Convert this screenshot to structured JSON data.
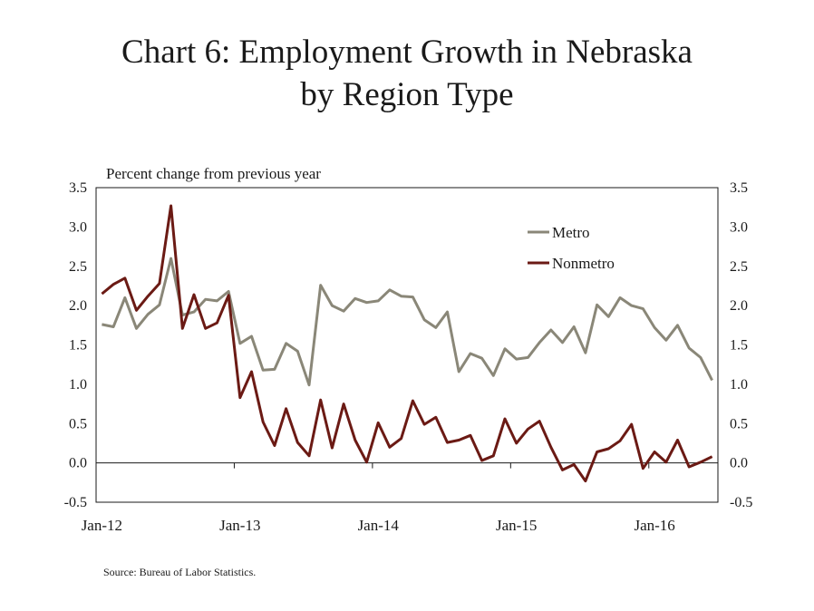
{
  "chart_data": {
    "type": "line",
    "title_line1": "Chart 6: Employment Growth in Nebraska",
    "title_line2": "by Region Type",
    "units_label": "Percent change from previous year",
    "source": "Source: Bureau of Labor Statistics.",
    "ylim": [
      -0.5,
      3.5
    ],
    "y_ticks": [
      "3.5",
      "3.0",
      "2.5",
      "2.0",
      "1.5",
      "1.0",
      "0.5",
      "0.0",
      "-0.5"
    ],
    "x_ticks": [
      "Jan-12",
      "Jan-13",
      "Jan-14",
      "Jan-15",
      "Jan-16"
    ],
    "x_start": "Jan-12",
    "x_end": "Jun-16",
    "legend_position": "top-right",
    "series": [
      {
        "name": "Metro",
        "color": "#8a8778",
        "values": [
          1.76,
          1.73,
          2.1,
          1.71,
          1.89,
          2.01,
          2.6,
          1.88,
          1.92,
          2.08,
          2.06,
          2.18,
          1.52,
          1.61,
          1.18,
          1.19,
          1.52,
          1.42,
          0.99,
          2.26,
          2.0,
          1.93,
          2.09,
          2.04,
          2.06,
          2.2,
          2.12,
          2.11,
          1.82,
          1.72,
          1.92,
          1.16,
          1.39,
          1.33,
          1.11,
          1.45,
          1.32,
          1.34,
          1.53,
          1.69,
          1.53,
          1.73,
          1.4,
          2.01,
          1.86,
          2.1,
          2.0,
          1.96,
          1.72,
          1.56,
          1.75,
          1.46,
          1.34,
          1.05
        ]
      },
      {
        "name": "Nonmetro",
        "color": "#6b1a14",
        "values": [
          2.15,
          2.27,
          2.35,
          1.94,
          2.12,
          2.28,
          3.27,
          1.71,
          2.14,
          1.71,
          1.78,
          2.13,
          0.83,
          1.16,
          0.52,
          0.22,
          0.69,
          0.26,
          0.09,
          0.8,
          0.19,
          0.75,
          0.29,
          0.01,
          0.51,
          0.2,
          0.31,
          0.79,
          0.49,
          0.58,
          0.26,
          0.29,
          0.35,
          0.03,
          0.09,
          0.56,
          0.25,
          0.43,
          0.53,
          0.2,
          -0.09,
          -0.02,
          -0.23,
          0.14,
          0.18,
          0.28,
          0.49,
          -0.07,
          0.14,
          0.01,
          0.29,
          -0.05,
          0.01,
          0.08
        ]
      }
    ]
  }
}
